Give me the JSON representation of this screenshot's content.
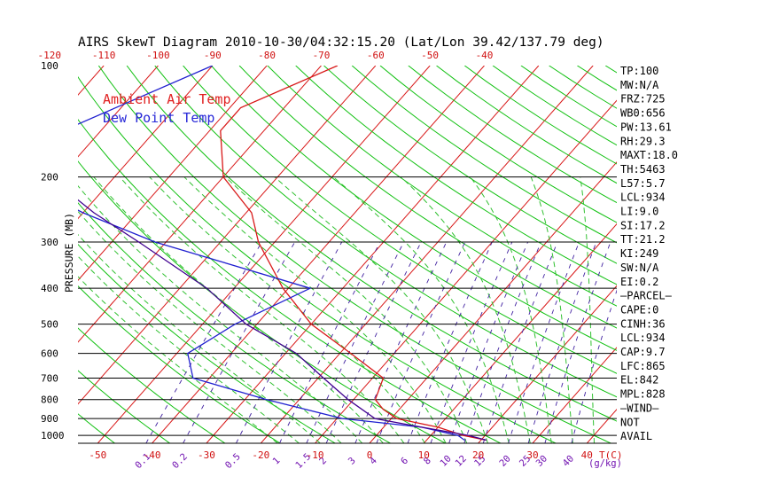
{
  "chart_data": {
    "type": "line",
    "title": "AIRS SkewT Diagram 2010-10-30/04:32:15.20 (Lat/Lon 39.42/137.79 deg)",
    "ylabel": "PRESSURE (MB)",
    "xlabel_bottom_unit": "T(C)",
    "mix_ratio_unit": "(g/kg)",
    "ylim": [
      1050,
      100
    ],
    "xlim_at_1050": [
      -52,
      45
    ],
    "pressure_ticks": [
      100,
      200,
      300,
      400,
      500,
      600,
      700,
      800,
      900,
      1000
    ],
    "pressure_lines": [
      1050,
      1000,
      900,
      800,
      700,
      600,
      500,
      400,
      300,
      200
    ],
    "bottom_temp_ticks": [
      -50,
      -40,
      -30,
      -20,
      -10,
      0,
      10,
      20,
      30,
      40
    ],
    "top_temp_ticks": [
      -120,
      -110,
      -100,
      -90,
      -80,
      -70,
      -60,
      -50,
      -40
    ],
    "mixing_ratio_labels": [
      "0.1",
      "0.2",
      "0.5",
      "1",
      "1.5",
      "2",
      "3",
      "4",
      "6",
      "8",
      "10",
      "12",
      "15",
      "20",
      "25",
      "30",
      "40"
    ],
    "legend": [
      {
        "name": "Ambient Air Temp",
        "color": "#e02020"
      },
      {
        "name": "Dew Point Temp",
        "color": "#2828d8"
      }
    ],
    "series": [
      {
        "name": "Ambient Air Temp",
        "color": "#d81818",
        "points": [
          [
            100,
            -67
          ],
          [
            130,
            -78
          ],
          [
            150,
            -78
          ],
          [
            200,
            -70
          ],
          [
            250,
            -59
          ],
          [
            300,
            -53
          ],
          [
            400,
            -41
          ],
          [
            500,
            -30
          ],
          [
            600,
            -18
          ],
          [
            700,
            -8
          ],
          [
            800,
            -6
          ],
          [
            850,
            -3
          ],
          [
            900,
            1
          ],
          [
            950,
            10
          ],
          [
            1000,
            16
          ],
          [
            1030,
            21
          ]
        ]
      },
      {
        "name": "Dew Point Temp",
        "color": "#2020d0",
        "points": [
          [
            100,
            -90
          ],
          [
            150,
            -107
          ],
          [
            180,
            -112
          ],
          [
            200,
            -109
          ],
          [
            250,
            -90
          ],
          [
            300,
            -72
          ],
          [
            400,
            -36
          ],
          [
            500,
            -44
          ],
          [
            600,
            -48
          ],
          [
            700,
            -43
          ],
          [
            800,
            -26
          ],
          [
            900,
            -9
          ],
          [
            950,
            7
          ],
          [
            1000,
            15
          ],
          [
            1030,
            17
          ]
        ]
      },
      {
        "name": "Parcel Path",
        "color": "#400090",
        "points": [
          [
            100,
            -128
          ],
          [
            150,
            -110
          ],
          [
            200,
            -102
          ],
          [
            250,
            -88
          ],
          [
            300,
            -75
          ],
          [
            400,
            -55
          ],
          [
            500,
            -42
          ],
          [
            600,
            -28
          ],
          [
            700,
            -19
          ],
          [
            800,
            -11
          ],
          [
            900,
            -3
          ],
          [
            950,
            7
          ],
          [
            1000,
            17
          ],
          [
            1030,
            21
          ]
        ]
      }
    ],
    "indices": [
      "TP:100",
      "MW:N/A",
      "FRZ:725",
      "WB0:656",
      "PW:13.61",
      "RH:29.3",
      "MAXT:18.0",
      "TH:5463",
      "L57:5.7",
      "LCL:934",
      "LI:9.0",
      "SI:17.2",
      "TT:21.2",
      "KI:249",
      "SW:N/A",
      "EI:0.2",
      "–PARCEL–",
      "CAPE:0",
      "CINH:36",
      "LCL:934",
      "CAP:9.7",
      "LFC:865",
      "EL:842",
      "MPL:828",
      "–WIND–",
      "NOT",
      "AVAIL"
    ]
  },
  "colors": {
    "isotherm": "#d81818",
    "dry_adiabat": "#10c010",
    "moist_adiabat": "#30c030",
    "mixing_ratio": "#4020a0",
    "mixing_ratio_label": "#7010b0",
    "isobar": "#000000",
    "temp_label": "#d01010",
    "text": "#000000"
  }
}
